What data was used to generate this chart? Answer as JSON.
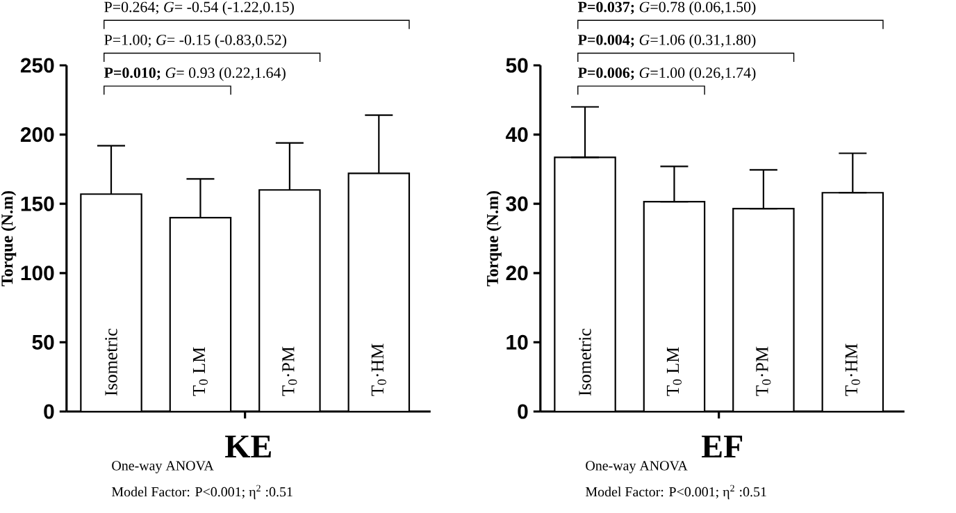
{
  "chart_data": [
    {
      "type": "bar",
      "categories": [
        "Isometric",
        "T$_{0}$ LM",
        "T$_{0}$·PM",
        "T$_{0}$·HM"
      ],
      "values": [
        157,
        140,
        160,
        172
      ],
      "errors": [
        [
          157,
          192
        ],
        [
          140,
          168
        ],
        [
          160,
          194
        ],
        [
          172,
          214
        ]
      ],
      "color": "#ffffff",
      "ylim": [
        0,
        250
      ],
      "yticks": [
        0,
        50,
        100,
        150,
        200,
        250
      ],
      "ylabel": "Torque (N.m)",
      "xlabel": "KE",
      "annotations": [
        "P=0.264; *G*= -0.54 (-1.22,0.15)",
        "P=1.00; *G*= -0.15 (-0.83,0.52)",
        "**P=0.010;** *G*= 0.93 (0.22,1.64)",
        "One-way  ANOVA",
        "Model Factor: P<0.001; η$^{2}$ :0.51"
      ]
    },
    {
      "type": "bar",
      "categories": [
        "Isometric",
        "T$_{0}$ LM",
        "T$_{0}$·PM",
        "T$_{0}$·HM"
      ],
      "values": [
        36.7,
        30.3,
        29.3,
        31.6
      ],
      "errors": [
        [
          36.7,
          44
        ],
        [
          30.3,
          35.4
        ],
        [
          29.3,
          34.9
        ],
        [
          31.6,
          37.3
        ]
      ],
      "color": "#ffffff",
      "ylim": [
        0,
        50
      ],
      "yticks": [
        0,
        10,
        20,
        30,
        40,
        50
      ],
      "ylabel": "Torque (N.m)",
      "xlabel": "EF",
      "annotations": [
        "**P=0.037;** *G*=0.78 (0.06,1.50)",
        "**P=0.004;** *G*=1.06 (0.31,1.80)",
        "**P=0.006;** *G*=1.00 (0.26,1.74)",
        "One-way  ANOVA",
        "Model Factor: P<0.001; η$^{2}$ :0.51"
      ]
    }
  ]
}
